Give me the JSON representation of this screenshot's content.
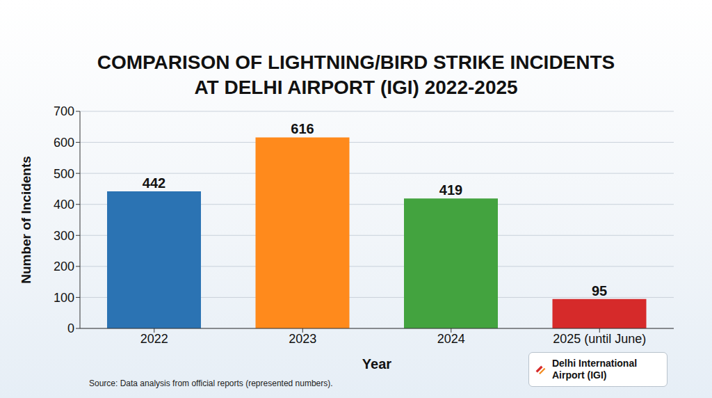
{
  "chart_data": {
    "type": "bar",
    "title": "COMPARISON OF LIGHTNING/BIRD STRIKE INCIDENTS AT DELHI AIRPORT (IGI) 2022-2025",
    "categories": [
      "2022",
      "2023",
      "2024",
      "2025 (until June)"
    ],
    "values": [
      442,
      616,
      419,
      95
    ],
    "colors": [
      "#2b73b3",
      "#ff8a1c",
      "#43a33f",
      "#d62a2a"
    ],
    "ylim": [
      0,
      700
    ],
    "yticks": [
      0,
      100,
      200,
      300,
      400,
      500,
      600,
      700
    ],
    "grid": true,
    "data_labels": true,
    "xlabel": "Year",
    "ylabel": "Number of Incidents",
    "source": "Source: Data analysis from official reports (represented numbers).",
    "badge": "Delhi International Airport (IGI)"
  }
}
